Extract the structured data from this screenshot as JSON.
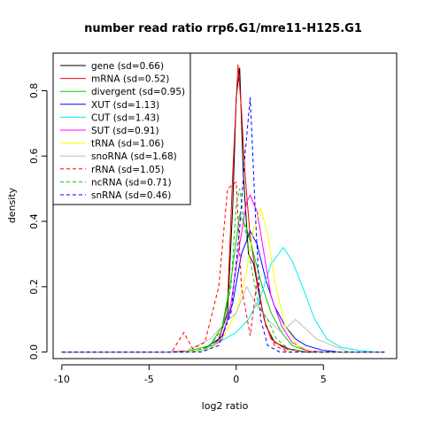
{
  "chart_data": {
    "type": "line",
    "title": "number read ratio rrp6.G1/mre11-H125.G1",
    "xlabel": "log2 ratio",
    "ylabel": "density",
    "xlim": [
      -10.5,
      9.2
    ],
    "ylim": [
      -0.02,
      0.915
    ],
    "x_ticks": [
      -10,
      -5,
      0,
      5
    ],
    "y_ticks": [
      0.0,
      0.2,
      0.4,
      0.6,
      0.8
    ],
    "grid": false,
    "legend_position": "top-left",
    "series": [
      {
        "name": "gene (sd=0.66)",
        "color": "#000000",
        "dash": false,
        "points": [
          [
            -10,
            0.0
          ],
          [
            -4,
            0.0
          ],
          [
            -2,
            0.005
          ],
          [
            -1,
            0.04
          ],
          [
            -0.5,
            0.12
          ],
          [
            -0.2,
            0.45
          ],
          [
            0.0,
            0.78
          ],
          [
            0.2,
            0.87
          ],
          [
            0.4,
            0.55
          ],
          [
            0.7,
            0.3
          ],
          [
            1.0,
            0.27
          ],
          [
            1.3,
            0.18
          ],
          [
            1.7,
            0.08
          ],
          [
            2.2,
            0.03
          ],
          [
            3.0,
            0.01
          ],
          [
            4.0,
            0.0
          ],
          [
            8.5,
            0.0
          ]
        ]
      },
      {
        "name": "mRNA (sd=0.52)",
        "color": "#ff0000",
        "dash": false,
        "points": [
          [
            -10,
            0.0
          ],
          [
            -4,
            0.0
          ],
          [
            -2,
            0.005
          ],
          [
            -1,
            0.03
          ],
          [
            -0.5,
            0.15
          ],
          [
            -0.2,
            0.55
          ],
          [
            0.1,
            0.88
          ],
          [
            0.3,
            0.74
          ],
          [
            0.5,
            0.55
          ],
          [
            0.8,
            0.35
          ],
          [
            1.2,
            0.22
          ],
          [
            1.6,
            0.1
          ],
          [
            2.0,
            0.04
          ],
          [
            2.8,
            0.01
          ],
          [
            4.0,
            0.0
          ],
          [
            8.5,
            0.0
          ]
        ]
      },
      {
        "name": "divergent (sd=0.95)",
        "color": "#00cd00",
        "dash": false,
        "points": [
          [
            -10,
            0.0
          ],
          [
            -3,
            0.0
          ],
          [
            -1.5,
            0.02
          ],
          [
            -0.8,
            0.08
          ],
          [
            -0.3,
            0.22
          ],
          [
            0.2,
            0.42
          ],
          [
            0.6,
            0.38
          ],
          [
            1.0,
            0.3
          ],
          [
            1.5,
            0.2
          ],
          [
            2.0,
            0.12
          ],
          [
            2.6,
            0.06
          ],
          [
            3.2,
            0.02
          ],
          [
            4.0,
            0.005
          ],
          [
            5.0,
            0.0
          ],
          [
            8.5,
            0.0
          ]
        ]
      },
      {
        "name": "XUT (sd=1.13)",
        "color": "#0000ff",
        "dash": false,
        "points": [
          [
            -10,
            0.0
          ],
          [
            -3,
            0.0
          ],
          [
            -1.5,
            0.01
          ],
          [
            -0.8,
            0.05
          ],
          [
            -0.2,
            0.15
          ],
          [
            0.3,
            0.3
          ],
          [
            0.8,
            0.37
          ],
          [
            1.2,
            0.33
          ],
          [
            1.7,
            0.22
          ],
          [
            2.2,
            0.14
          ],
          [
            2.8,
            0.08
          ],
          [
            3.4,
            0.04
          ],
          [
            4.0,
            0.02
          ],
          [
            5.0,
            0.005
          ],
          [
            6.0,
            0.0
          ],
          [
            8.5,
            0.0
          ]
        ]
      },
      {
        "name": "CUT (sd=1.43)",
        "color": "#00eeee",
        "dash": false,
        "points": [
          [
            -10,
            0.0
          ],
          [
            -3,
            0.0
          ],
          [
            -2,
            0.005
          ],
          [
            -1,
            0.03
          ],
          [
            0.0,
            0.06
          ],
          [
            0.7,
            0.1
          ],
          [
            1.4,
            0.17
          ],
          [
            2.0,
            0.27
          ],
          [
            2.7,
            0.32
          ],
          [
            3.2,
            0.28
          ],
          [
            3.8,
            0.2
          ],
          [
            4.5,
            0.1
          ],
          [
            5.2,
            0.04
          ],
          [
            6.0,
            0.015
          ],
          [
            7.0,
            0.005
          ],
          [
            8.0,
            0.0
          ],
          [
            8.5,
            0.0
          ]
        ]
      },
      {
        "name": "SUT (sd=0.91)",
        "color": "#ff00ff",
        "dash": false,
        "points": [
          [
            -10,
            0.0
          ],
          [
            -3,
            0.0
          ],
          [
            -1.5,
            0.01
          ],
          [
            -0.8,
            0.04
          ],
          [
            -0.3,
            0.15
          ],
          [
            0.2,
            0.33
          ],
          [
            0.6,
            0.46
          ],
          [
            0.8,
            0.48
          ],
          [
            1.2,
            0.43
          ],
          [
            1.6,
            0.3
          ],
          [
            2.0,
            0.17
          ],
          [
            2.6,
            0.08
          ],
          [
            3.2,
            0.03
          ],
          [
            4.0,
            0.005
          ],
          [
            5.0,
            0.0
          ],
          [
            8.5,
            0.0
          ]
        ]
      },
      {
        "name": "tRNA (sd=1.06)",
        "color": "#ffff00",
        "dash": false,
        "points": [
          [
            -10,
            0.0
          ],
          [
            -3,
            0.0
          ],
          [
            -1.5,
            0.01
          ],
          [
            -0.7,
            0.05
          ],
          [
            0.0,
            0.12
          ],
          [
            0.6,
            0.25
          ],
          [
            1.0,
            0.38
          ],
          [
            1.4,
            0.44
          ],
          [
            1.8,
            0.36
          ],
          [
            2.2,
            0.22
          ],
          [
            2.8,
            0.08
          ],
          [
            3.5,
            0.02
          ],
          [
            4.5,
            0.0
          ],
          [
            8.5,
            0.0
          ]
        ]
      },
      {
        "name": "snoRNA (sd=1.68)",
        "color": "#bebebe",
        "dash": false,
        "points": [
          [
            -10,
            0.0
          ],
          [
            -3,
            0.0
          ],
          [
            -1.5,
            0.04
          ],
          [
            -0.8,
            0.08
          ],
          [
            0.0,
            0.12
          ],
          [
            0.6,
            0.2
          ],
          [
            1.2,
            0.14
          ],
          [
            1.8,
            0.1
          ],
          [
            2.6,
            0.06
          ],
          [
            3.4,
            0.1
          ],
          [
            4.0,
            0.07
          ],
          [
            4.6,
            0.04
          ],
          [
            5.5,
            0.02
          ],
          [
            6.5,
            0.0
          ],
          [
            8.5,
            0.0
          ]
        ]
      },
      {
        "name": "rRNA (sd=1.05)",
        "color": "#ff0000",
        "dash": true,
        "points": [
          [
            -10,
            0.0
          ],
          [
            -3.7,
            0.0
          ],
          [
            -3.0,
            0.06
          ],
          [
            -2.5,
            0.01
          ],
          [
            -1.8,
            0.03
          ],
          [
            -1.0,
            0.2
          ],
          [
            -0.5,
            0.5
          ],
          [
            0.0,
            0.52
          ],
          [
            0.3,
            0.2
          ],
          [
            0.8,
            0.05
          ],
          [
            1.2,
            0.22
          ],
          [
            1.6,
            0.1
          ],
          [
            2.2,
            0.02
          ],
          [
            3.0,
            0.0
          ],
          [
            8.5,
            0.0
          ]
        ]
      },
      {
        "name": "ncRNA (sd=0.71)",
        "color": "#00cd00",
        "dash": true,
        "points": [
          [
            -10,
            0.0
          ],
          [
            -2.5,
            0.0
          ],
          [
            -1.5,
            0.02
          ],
          [
            -0.8,
            0.07
          ],
          [
            -0.3,
            0.2
          ],
          [
            0.0,
            0.45
          ],
          [
            0.2,
            0.5
          ],
          [
            0.5,
            0.38
          ],
          [
            0.9,
            0.25
          ],
          [
            1.3,
            0.14
          ],
          [
            1.8,
            0.1
          ],
          [
            2.3,
            0.04
          ],
          [
            3.0,
            0.01
          ],
          [
            4.0,
            0.0
          ],
          [
            8.5,
            0.0
          ]
        ]
      },
      {
        "name": "snRNA (sd=0.46)",
        "color": "#0000ff",
        "dash": true,
        "points": [
          [
            -10,
            0.0
          ],
          [
            -2,
            0.0
          ],
          [
            -1.0,
            0.02
          ],
          [
            -0.3,
            0.12
          ],
          [
            0.2,
            0.38
          ],
          [
            0.5,
            0.6
          ],
          [
            0.8,
            0.78
          ],
          [
            1.1,
            0.42
          ],
          [
            1.4,
            0.1
          ],
          [
            1.8,
            0.02
          ],
          [
            2.5,
            0.0
          ],
          [
            8.5,
            0.0
          ]
        ]
      }
    ]
  }
}
